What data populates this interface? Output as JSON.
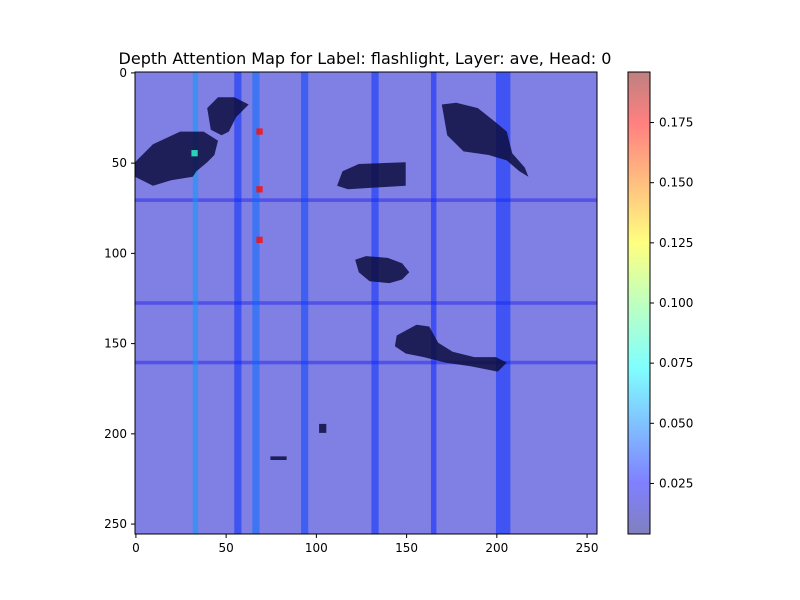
{
  "chart_data": {
    "type": "heatmap",
    "title": "Depth Attention Map for Label: flashlight, Layer: ave, Head: 0",
    "xlabel": "",
    "ylabel": "",
    "xlim": [
      0,
      255
    ],
    "ylim": [
      255,
      0
    ],
    "x_ticks": [
      0,
      50,
      100,
      150,
      200,
      250
    ],
    "y_ticks": [
      0,
      50,
      100,
      150,
      200,
      250
    ],
    "colorbar": {
      "colormap": "jet",
      "alpha": 0.5,
      "range": [
        0.004,
        0.196
      ],
      "ticks": [
        0.025,
        0.05,
        0.075,
        0.1,
        0.125,
        0.15,
        0.175
      ],
      "tick_labels": [
        "0.025",
        "0.050",
        "0.075",
        "0.100",
        "0.125",
        "0.150",
        "0.175"
      ]
    },
    "background_value": 0.018,
    "vertical_bands": [
      {
        "x": [
          32,
          35
        ],
        "value": 0.058
      },
      {
        "x": [
          55,
          59
        ],
        "value": 0.035
      },
      {
        "x": [
          65,
          69
        ],
        "value": 0.048
      },
      {
        "x": [
          92,
          96
        ],
        "value": 0.04
      },
      {
        "x": [
          131,
          135
        ],
        "value": 0.036
      },
      {
        "x": [
          164,
          167
        ],
        "value": 0.034
      },
      {
        "x": [
          200,
          208
        ],
        "value": 0.036
      }
    ],
    "horizontal_bands": [
      {
        "y": [
          70,
          72
        ],
        "value": 0.026
      },
      {
        "y": [
          127,
          129
        ],
        "value": 0.025
      },
      {
        "y": [
          160,
          162
        ],
        "value": 0.026
      }
    ],
    "hot_spots": [
      {
        "x": 69,
        "y": 33,
        "value": 0.17
      },
      {
        "x": 69,
        "y": 65,
        "value": 0.17
      },
      {
        "x": 69,
        "y": 93,
        "value": 0.17
      },
      {
        "x": 33,
        "y": 45,
        "value": 0.085
      }
    ],
    "dark_regions": [
      {
        "points": [
          [
            0,
            50
          ],
          [
            10,
            40
          ],
          [
            25,
            33
          ],
          [
            38,
            33
          ],
          [
            46,
            38
          ],
          [
            44,
            46
          ],
          [
            40,
            50
          ],
          [
            34,
            55
          ],
          [
            32,
            58
          ],
          [
            20,
            60
          ],
          [
            10,
            63
          ],
          [
            0,
            58
          ]
        ]
      },
      {
        "points": [
          [
            40,
            20
          ],
          [
            46,
            14
          ],
          [
            55,
            14
          ],
          [
            63,
            18
          ],
          [
            56,
            25
          ],
          [
            52,
            33
          ],
          [
            48,
            35
          ],
          [
            42,
            32
          ]
        ]
      },
      {
        "points": [
          [
            170,
            18
          ],
          [
            178,
            17
          ],
          [
            190,
            20
          ],
          [
            200,
            28
          ],
          [
            206,
            33
          ],
          [
            209,
            45
          ],
          [
            216,
            53
          ],
          [
            218,
            58
          ],
          [
            213,
            55
          ],
          [
            206,
            49
          ],
          [
            196,
            46
          ],
          [
            182,
            44
          ],
          [
            173,
            35
          ]
        ]
      },
      {
        "points": [
          [
            115,
            55
          ],
          [
            124,
            51
          ],
          [
            150,
            50
          ],
          [
            150,
            63
          ],
          [
            118,
            65
          ],
          [
            112,
            63
          ]
        ]
      },
      {
        "points": [
          [
            122,
            104
          ],
          [
            128,
            102
          ],
          [
            140,
            103
          ],
          [
            148,
            106
          ],
          [
            152,
            111
          ],
          [
            148,
            115
          ],
          [
            141,
            117
          ],
          [
            130,
            116
          ],
          [
            124,
            111
          ]
        ]
      },
      {
        "points": [
          [
            145,
            146
          ],
          [
            156,
            140
          ],
          [
            163,
            141
          ],
          [
            168,
            150
          ],
          [
            176,
            155
          ],
          [
            188,
            158
          ],
          [
            200,
            158
          ],
          [
            206,
            161
          ],
          [
            201,
            166
          ],
          [
            186,
            163
          ],
          [
            172,
            161
          ],
          [
            160,
            158
          ],
          [
            150,
            156
          ],
          [
            144,
            152
          ]
        ]
      },
      {
        "points": [
          [
            102,
            195
          ],
          [
            106,
            195
          ],
          [
            106,
            200
          ],
          [
            102,
            200
          ]
        ]
      },
      {
        "points": [
          [
            75,
            213
          ],
          [
            84,
            213
          ],
          [
            84,
            215
          ],
          [
            75,
            215
          ]
        ]
      }
    ]
  }
}
